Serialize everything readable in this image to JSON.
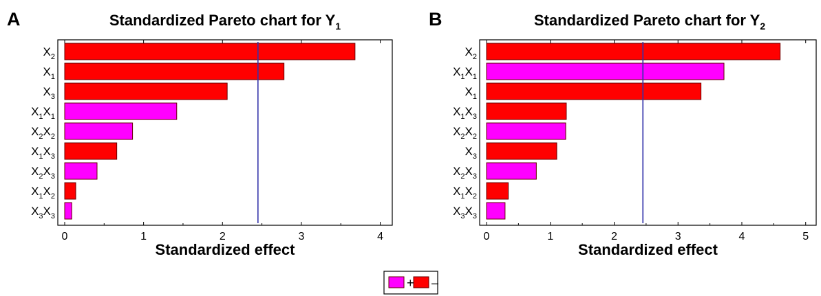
{
  "legend": {
    "entries": [
      {
        "label": "+",
        "color": "#ff00ff"
      },
      {
        "label": "–",
        "color": "#ff0000"
      }
    ]
  },
  "colors": {
    "positive": "#ff00ff",
    "negative": "#ff0000",
    "reference_line": "#3333aa",
    "bar_edge": "#660000"
  },
  "chart_data": [
    {
      "type": "bar",
      "orientation": "horizontal",
      "panel": "A",
      "title": {
        "main": "Standardized Pareto chart for Y",
        "sub": "1"
      },
      "xlabel": "Standardized effect",
      "xlim": [
        0,
        4.1
      ],
      "xticks": [
        0,
        1,
        2,
        3,
        4
      ],
      "reference_line": 2.45,
      "grid": false,
      "categories": [
        {
          "parts": [
            [
              "X",
              "2"
            ]
          ],
          "value": 3.68,
          "sign": "-"
        },
        {
          "parts": [
            [
              "X",
              "1"
            ]
          ],
          "value": 2.78,
          "sign": "-"
        },
        {
          "parts": [
            [
              "X",
              "3"
            ]
          ],
          "value": 2.06,
          "sign": "-"
        },
        {
          "parts": [
            [
              "X",
              "1"
            ],
            [
              "X",
              "1"
            ]
          ],
          "value": 1.42,
          "sign": "+"
        },
        {
          "parts": [
            [
              "X",
              "2"
            ],
            [
              "X",
              "2"
            ]
          ],
          "value": 0.86,
          "sign": "+"
        },
        {
          "parts": [
            [
              "X",
              "1"
            ],
            [
              "X",
              "3"
            ]
          ],
          "value": 0.66,
          "sign": "-"
        },
        {
          "parts": [
            [
              "X",
              "2"
            ],
            [
              "X",
              "3"
            ]
          ],
          "value": 0.41,
          "sign": "+"
        },
        {
          "parts": [
            [
              "X",
              "1"
            ],
            [
              "X",
              "2"
            ]
          ],
          "value": 0.14,
          "sign": "-"
        },
        {
          "parts": [
            [
              "X",
              "3"
            ],
            [
              "X",
              "3"
            ]
          ],
          "value": 0.09,
          "sign": "+"
        }
      ]
    },
    {
      "type": "bar",
      "orientation": "horizontal",
      "panel": "B",
      "title": {
        "main": "Standardized Pareto chart for Y",
        "sub": "2"
      },
      "xlabel": "Standardized effect",
      "xlim": [
        0,
        5.1
      ],
      "xticks": [
        0,
        1,
        2,
        3,
        4,
        5
      ],
      "reference_line": 2.45,
      "grid": false,
      "categories": [
        {
          "parts": [
            [
              "X",
              "2"
            ]
          ],
          "value": 4.6,
          "sign": "-"
        },
        {
          "parts": [
            [
              "X",
              "1"
            ],
            [
              "X",
              "1"
            ]
          ],
          "value": 3.72,
          "sign": "+"
        },
        {
          "parts": [
            [
              "X",
              "1"
            ]
          ],
          "value": 3.36,
          "sign": "-"
        },
        {
          "parts": [
            [
              "X",
              "1"
            ],
            [
              "X",
              "3"
            ]
          ],
          "value": 1.25,
          "sign": "-"
        },
        {
          "parts": [
            [
              "X",
              "2"
            ],
            [
              "X",
              "2"
            ]
          ],
          "value": 1.24,
          "sign": "+"
        },
        {
          "parts": [
            [
              "X",
              "3"
            ]
          ],
          "value": 1.1,
          "sign": "-"
        },
        {
          "parts": [
            [
              "X",
              "2"
            ],
            [
              "X",
              "3"
            ]
          ],
          "value": 0.78,
          "sign": "+"
        },
        {
          "parts": [
            [
              "X",
              "1"
            ],
            [
              "X",
              "2"
            ]
          ],
          "value": 0.34,
          "sign": "-"
        },
        {
          "parts": [
            [
              "X",
              "3"
            ],
            [
              "X",
              "3"
            ]
          ],
          "value": 0.29,
          "sign": "+"
        }
      ]
    }
  ]
}
